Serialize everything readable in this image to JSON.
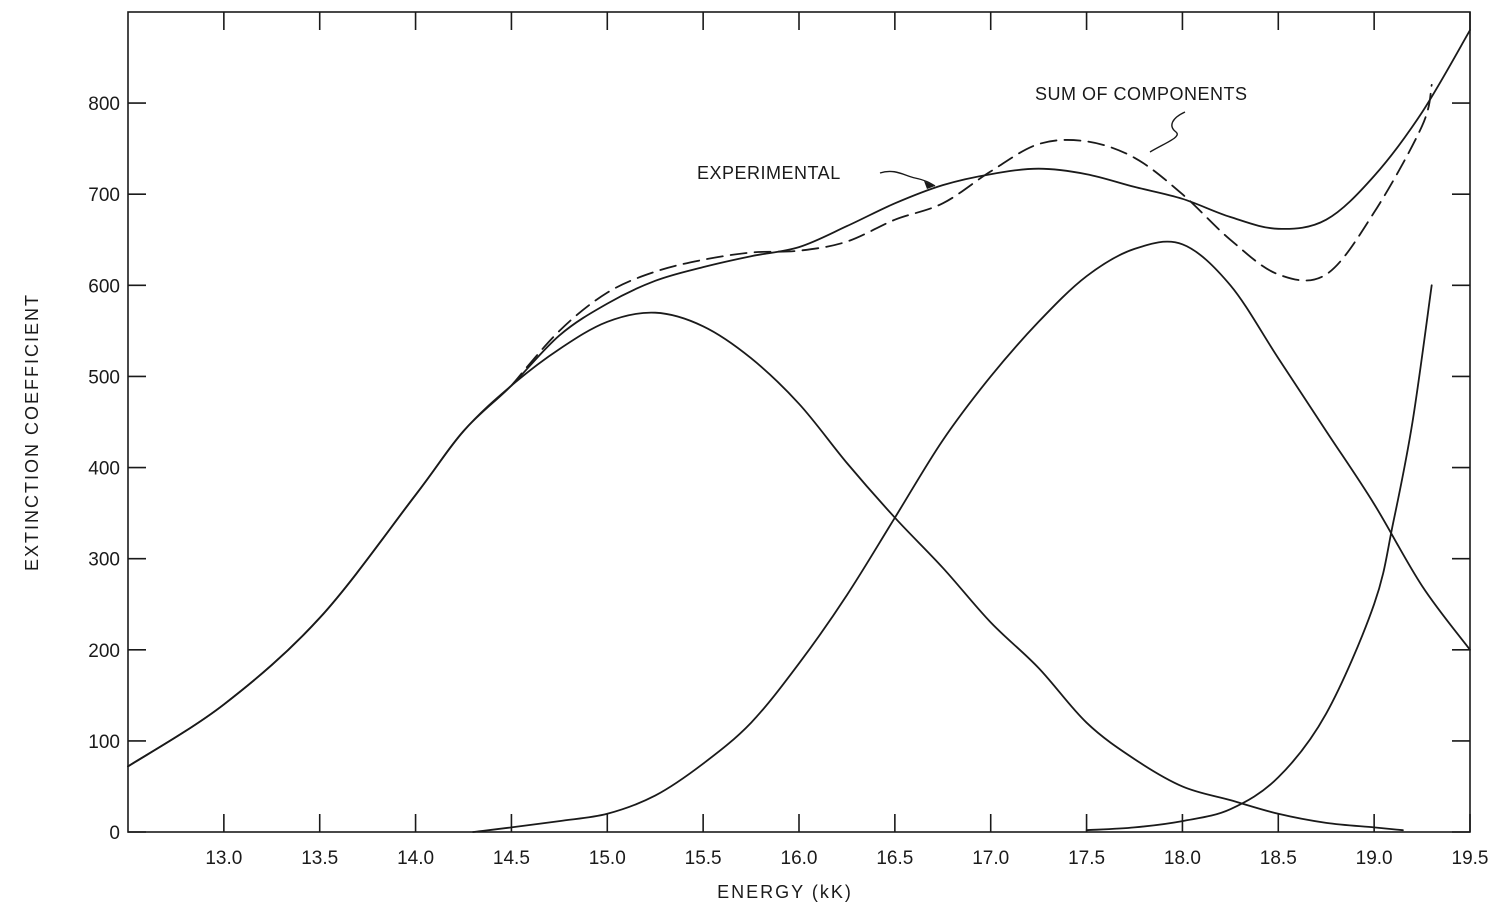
{
  "chart_data": {
    "type": "line",
    "title": "",
    "xlabel": "ENERGY (kK)",
    "ylabel": "EXTINCTION COEFFICIENT",
    "xlim": [
      12.5,
      19.5
    ],
    "ylim": [
      0,
      900
    ],
    "x_tick_labels": [
      "13.0",
      "13.5",
      "14.0",
      "14.5",
      "15.0",
      "15.5",
      "16.0",
      "16.5",
      "17.0",
      "17.5",
      "18.0",
      "18.5",
      "19.0",
      "19.5"
    ],
    "y_tick_labels": [
      "0",
      "100",
      "200",
      "300",
      "400",
      "500",
      "600",
      "700",
      "800"
    ],
    "grid": false,
    "annotations": [
      {
        "text": "EXPERIMENTAL",
        "target": "experimental"
      },
      {
        "text": "SUM OF COMPONENTS",
        "target": "sum"
      }
    ],
    "series": [
      {
        "id": "experimental",
        "style": "solid",
        "x": [
          12.5,
          13.0,
          13.5,
          14.0,
          14.25,
          14.5,
          14.75,
          15.0,
          15.25,
          15.5,
          15.75,
          16.0,
          16.25,
          16.5,
          16.75,
          17.0,
          17.25,
          17.5,
          17.75,
          18.0,
          18.25,
          18.5,
          18.75,
          19.0,
          19.25,
          19.5
        ],
        "y": [
          72,
          140,
          235,
          370,
          440,
          490,
          545,
          580,
          605,
          620,
          632,
          642,
          665,
          690,
          710,
          722,
          728,
          722,
          708,
          695,
          675,
          662,
          672,
          720,
          790,
          880
        ]
      },
      {
        "id": "sum",
        "style": "dashed",
        "x": [
          14.5,
          14.75,
          15.0,
          15.25,
          15.5,
          15.75,
          16.0,
          16.25,
          16.5,
          16.75,
          17.0,
          17.25,
          17.5,
          17.75,
          18.0,
          18.25,
          18.5,
          18.75,
          19.0,
          19.25,
          19.3
        ],
        "y": [
          490,
          550,
          592,
          615,
          628,
          636,
          638,
          648,
          672,
          690,
          725,
          755,
          758,
          740,
          700,
          650,
          612,
          612,
          680,
          775,
          820
        ]
      },
      {
        "id": "component-1",
        "style": "solid",
        "x": [
          12.5,
          13.0,
          13.5,
          14.0,
          14.25,
          14.5,
          14.75,
          15.0,
          15.25,
          15.5,
          15.75,
          16.0,
          16.25,
          16.5,
          16.75,
          17.0,
          17.25,
          17.5,
          17.75,
          18.0,
          18.25,
          18.5,
          18.75,
          19.0,
          19.15
        ],
        "y": [
          72,
          140,
          235,
          370,
          440,
          490,
          530,
          560,
          570,
          555,
          520,
          470,
          405,
          345,
          290,
          230,
          180,
          120,
          80,
          50,
          35,
          20,
          10,
          5,
          2
        ]
      },
      {
        "id": "component-2",
        "style": "solid",
        "x": [
          14.3,
          14.5,
          14.75,
          15.0,
          15.25,
          15.5,
          15.75,
          16.0,
          16.25,
          16.5,
          16.75,
          17.0,
          17.25,
          17.5,
          17.75,
          18.0,
          18.25,
          18.5,
          18.75,
          19.0,
          19.25,
          19.5
        ],
        "y": [
          0,
          5,
          12,
          20,
          40,
          75,
          120,
          185,
          260,
          345,
          430,
          500,
          560,
          610,
          640,
          645,
          600,
          520,
          440,
          360,
          270,
          200
        ]
      },
      {
        "id": "component-3",
        "style": "solid",
        "x": [
          17.5,
          17.75,
          18.0,
          18.25,
          18.5,
          18.75,
          19.0,
          19.1,
          19.2,
          19.3
        ],
        "y": [
          2,
          5,
          12,
          25,
          60,
          130,
          250,
          340,
          450,
          600
        ]
      }
    ]
  }
}
